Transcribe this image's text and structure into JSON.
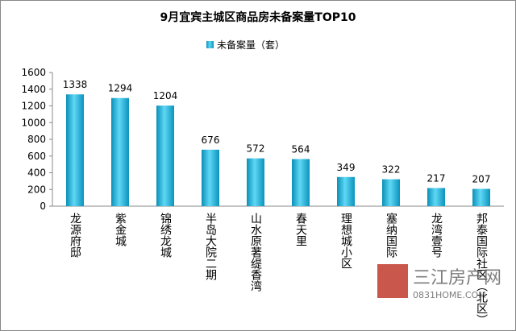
{
  "chart_data": {
    "type": "bar",
    "title": "9月宜宾主城区商品房未备案量TOP10",
    "categories": [
      "龙源府邸",
      "紫金城",
      "锦绣龙城",
      "半岛大院二期",
      "山水原著缇香湾",
      "春天里",
      "理想城小区",
      "塞纳国际",
      "龙湾壹号",
      "邦泰国际社区（北区）"
    ],
    "series": [
      {
        "name": "未备案量（套）",
        "color": "#1cb4dc",
        "values": [
          1338,
          1294,
          1204,
          676,
          572,
          564,
          349,
          322,
          217,
          207
        ]
      }
    ],
    "ylim": [
      0,
      1600
    ],
    "yticks": [
      0,
      200,
      400,
      600,
      800,
      1000,
      1200,
      1400,
      1600
    ],
    "grid": false,
    "watermark": [
      "三江房产网",
      "0831HOME.COM"
    ]
  }
}
